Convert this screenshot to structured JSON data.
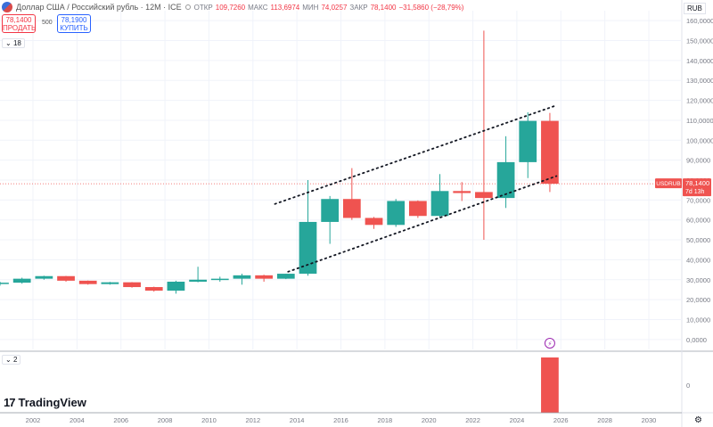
{
  "header": {
    "title": "Доллар США / Российский рубль · 12M · ICE",
    "ohlc": [
      {
        "label": "ОТКР",
        "value": "109,7260"
      },
      {
        "label": "МАКС",
        "value": "113,6974"
      },
      {
        "label": "МИН",
        "value": "74,0257"
      },
      {
        "label": "ЗАКР",
        "value": "78,1400"
      },
      {
        "label": "",
        "value": "−31,5860 (−28,79%)"
      }
    ]
  },
  "trade": {
    "sell_price": "78,1400",
    "sell_label": "ПРОДАТЬ",
    "buy_price": "78,1900",
    "buy_label": "КУПИТЬ",
    "spread": "500"
  },
  "panes": {
    "main_collapse": "18",
    "volume_collapse": "2"
  },
  "currency": "RUB",
  "brand": "TradingView",
  "price_tag": {
    "symbol": "USDRUB",
    "price": "78,1400",
    "countdown": "7d 13h"
  },
  "volume_axis_label": "0",
  "colors": {
    "up": "#26a69a",
    "down": "#ef5350",
    "trend": "#131722",
    "grid": "#f0f3fa",
    "event": "#9c27b0"
  },
  "chart_data": {
    "type": "candlestick",
    "symbol": "USDRUB",
    "interval": "12M",
    "x_ticks": [
      "2002",
      "2004",
      "2006",
      "2008",
      "2010",
      "2012",
      "2014",
      "2016",
      "2018",
      "2020",
      "2022",
      "2024",
      "2026",
      "2028",
      "2030"
    ],
    "y_ticks": [
      "0,0000",
      "10,0000",
      "20,0000",
      "30,0000",
      "40,0000",
      "50,0000",
      "60,0000",
      "70,0000",
      "80,0000",
      "90,0000",
      "100,0000",
      "110,0000",
      "120,0000",
      "130,0000",
      "140,0000",
      "150,0000",
      "160,0000"
    ],
    "ylim": [
      -5,
      165
    ],
    "xlim": [
      2000.5,
      2031.5
    ],
    "candles": [
      {
        "year": 2000,
        "open": 28.0,
        "high": 29.0,
        "low": 27.0,
        "close": 28.5
      },
      {
        "year": 2001,
        "open": 28.5,
        "high": 31.0,
        "low": 28.0,
        "close": 30.5
      },
      {
        "year": 2002,
        "open": 30.5,
        "high": 32.0,
        "low": 30.0,
        "close": 31.8
      },
      {
        "year": 2003,
        "open": 31.8,
        "high": 31.9,
        "low": 29.0,
        "close": 29.5
      },
      {
        "year": 2004,
        "open": 29.5,
        "high": 29.6,
        "low": 27.5,
        "close": 27.8
      },
      {
        "year": 2005,
        "open": 27.8,
        "high": 28.9,
        "low": 27.5,
        "close": 28.7
      },
      {
        "year": 2006,
        "open": 28.7,
        "high": 28.8,
        "low": 26.0,
        "close": 26.3
      },
      {
        "year": 2007,
        "open": 26.3,
        "high": 26.5,
        "low": 24.0,
        "close": 24.5
      },
      {
        "year": 2008,
        "open": 24.5,
        "high": 29.5,
        "low": 23.0,
        "close": 29.0
      },
      {
        "year": 2009,
        "open": 29.0,
        "high": 36.5,
        "low": 28.7,
        "close": 30.0
      },
      {
        "year": 2010,
        "open": 30.0,
        "high": 31.5,
        "low": 29.0,
        "close": 30.5
      },
      {
        "year": 2011,
        "open": 30.5,
        "high": 33.0,
        "low": 27.5,
        "close": 32.2
      },
      {
        "year": 2012,
        "open": 32.2,
        "high": 32.5,
        "low": 29.0,
        "close": 30.5
      },
      {
        "year": 2013,
        "open": 30.5,
        "high": 33.0,
        "low": 30.3,
        "close": 33.0
      },
      {
        "year": 2014,
        "open": 33.0,
        "high": 80.0,
        "low": 32.0,
        "close": 59.0
      },
      {
        "year": 2015,
        "open": 59.0,
        "high": 72.0,
        "low": 48.0,
        "close": 70.5
      },
      {
        "year": 2016,
        "open": 70.5,
        "high": 86.0,
        "low": 60.0,
        "close": 61.0
      },
      {
        "year": 2017,
        "open": 61.0,
        "high": 61.5,
        "low": 55.5,
        "close": 57.5
      },
      {
        "year": 2018,
        "open": 57.5,
        "high": 70.5,
        "low": 56.5,
        "close": 69.5
      },
      {
        "year": 2019,
        "open": 69.5,
        "high": 69.8,
        "low": 61.0,
        "close": 62.0
      },
      {
        "year": 2020,
        "open": 62.0,
        "high": 83.0,
        "low": 61.0,
        "close": 74.5
      },
      {
        "year": 2021,
        "open": 74.5,
        "high": 79.0,
        "low": 69.5,
        "close": 73.5
      },
      {
        "year": 2022,
        "open": 74.0,
        "high": 155.0,
        "low": 50.0,
        "close": 71.0
      },
      {
        "year": 2023,
        "open": 71.0,
        "high": 102.0,
        "low": 66.0,
        "close": 89.0
      },
      {
        "year": 2024,
        "open": 89.0,
        "high": 114.0,
        "low": 81.0,
        "close": 109.7
      },
      {
        "year": 2025,
        "open": 109.7,
        "high": 113.7,
        "low": 74.0,
        "close": 78.14
      }
    ],
    "trendlines": [
      {
        "x1": 2013.0,
        "y1": 68.0,
        "x2": 2025.8,
        "y2": 117.5,
        "style": "dotted"
      },
      {
        "x1": 2013.6,
        "y1": 34.0,
        "x2": 2025.8,
        "y2": 82.0,
        "style": "dotted"
      }
    ],
    "last_price": 78.14,
    "volume": {
      "year": 2025,
      "value": 1
    }
  }
}
